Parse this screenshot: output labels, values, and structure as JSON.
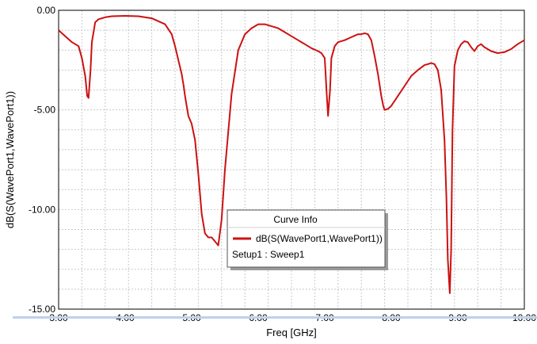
{
  "chart_data": {
    "type": "line",
    "title": "",
    "xlabel": "Freq [GHz]",
    "ylabel": "dB(S(WavePort1,WavePort1))",
    "xlim": [
      3.0,
      10.0
    ],
    "ylim": [
      -15.0,
      0.0
    ],
    "x_ticks": [
      "3.00",
      "4.00",
      "5.00",
      "6.00",
      "7.00",
      "8.00",
      "9.00",
      "10.00"
    ],
    "y_ticks": [
      "0.00",
      "-5.00",
      "-10.00",
      "-15.00"
    ],
    "grid": true,
    "legend": {
      "title": "Curve Info",
      "entries": [
        "dB(S(WavePort1,WavePort1))"
      ],
      "setup": "Setup1 : Sweep1",
      "placement": "lower-center"
    },
    "colors": {
      "series": "#cc1111",
      "grid": "#c8c8c8",
      "axis": "#000000"
    },
    "series": [
      {
        "name": "dB(S(WavePort1,WavePort1))",
        "x": [
          3.0,
          3.1,
          3.2,
          3.3,
          3.35,
          3.4,
          3.43,
          3.45,
          3.48,
          3.5,
          3.55,
          3.6,
          3.7,
          3.8,
          4.0,
          4.2,
          4.4,
          4.6,
          4.7,
          4.75,
          4.8,
          4.85,
          4.88,
          4.9,
          4.95,
          5.0,
          5.05,
          5.1,
          5.15,
          5.2,
          5.25,
          5.3,
          5.35,
          5.4,
          5.45,
          5.5,
          5.6,
          5.7,
          5.8,
          5.9,
          6.0,
          6.1,
          6.2,
          6.3,
          6.4,
          6.5,
          6.6,
          6.7,
          6.8,
          6.9,
          6.95,
          7.0,
          7.03,
          7.05,
          7.08,
          7.1,
          7.15,
          7.2,
          7.3,
          7.4,
          7.5,
          7.55,
          7.6,
          7.65,
          7.7,
          7.75,
          7.8,
          7.85,
          7.88,
          7.9,
          7.95,
          8.0,
          8.1,
          8.2,
          8.3,
          8.4,
          8.5,
          8.55,
          8.6,
          8.65,
          8.7,
          8.75,
          8.8,
          8.83,
          8.85,
          8.88,
          8.9,
          8.92,
          8.95,
          9.0,
          9.05,
          9.1,
          9.15,
          9.2,
          9.25,
          9.3,
          9.35,
          9.4,
          9.5,
          9.6,
          9.7,
          9.8,
          9.9,
          10.0
        ],
        "values": [
          -1.0,
          -1.3,
          -1.6,
          -1.8,
          -2.4,
          -3.3,
          -4.3,
          -4.4,
          -3.0,
          -1.6,
          -0.6,
          -0.45,
          -0.35,
          -0.3,
          -0.28,
          -0.3,
          -0.4,
          -0.7,
          -1.2,
          -1.8,
          -2.5,
          -3.2,
          -3.8,
          -4.3,
          -5.3,
          -5.7,
          -6.5,
          -8.2,
          -10.2,
          -11.2,
          -11.4,
          -11.4,
          -11.6,
          -11.8,
          -10.5,
          -8.0,
          -4.2,
          -2.0,
          -1.2,
          -0.9,
          -0.7,
          -0.7,
          -0.8,
          -0.9,
          -1.1,
          -1.3,
          -1.5,
          -1.7,
          -1.9,
          -2.05,
          -2.15,
          -2.4,
          -4.2,
          -5.3,
          -4.0,
          -2.4,
          -1.8,
          -1.6,
          -1.5,
          -1.35,
          -1.2,
          -1.2,
          -1.15,
          -1.2,
          -1.5,
          -2.3,
          -3.2,
          -4.3,
          -4.8,
          -5.0,
          -4.95,
          -4.8,
          -4.3,
          -3.8,
          -3.3,
          -3.0,
          -2.75,
          -2.7,
          -2.65,
          -2.7,
          -3.0,
          -4.0,
          -6.5,
          -9.5,
          -12.5,
          -14.2,
          -12.0,
          -6.0,
          -2.8,
          -2.0,
          -1.7,
          -1.55,
          -1.6,
          -1.85,
          -2.05,
          -1.8,
          -1.7,
          -1.85,
          -2.05,
          -2.15,
          -2.1,
          -1.95,
          -1.7,
          -1.5
        ]
      }
    ]
  }
}
